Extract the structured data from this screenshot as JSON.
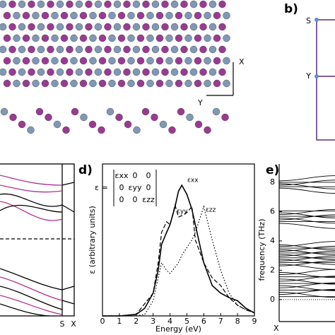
{
  "structure": {
    "axis_labels": [
      "X",
      "Y"
    ]
  },
  "panel_b": {
    "label": "b)",
    "points": [
      "S",
      "Y"
    ]
  },
  "panel_c": {
    "x_labels": [
      "S",
      "X"
    ]
  },
  "chart_data": [
    {
      "type": "line",
      "label": "d)",
      "xlabel": "Energy (eV)",
      "ylabel": "ε (arbitrary units)",
      "equation": {
        "lhs": "ε =",
        "rows": [
          [
            "εxx",
            "0",
            "0"
          ],
          [
            "0",
            "εyy",
            "0"
          ],
          [
            "0",
            "0",
            "εzz"
          ]
        ]
      },
      "annotations": [
        "εxx",
        "εyy",
        "εzz"
      ],
      "x": [
        0,
        1,
        2,
        2.5,
        3,
        3.3,
        3.5,
        3.8,
        4,
        4.3,
        4.5,
        4.7,
        5,
        5.3,
        5.5,
        6,
        6.5,
        7,
        7.5,
        8,
        8.5,
        9
      ],
      "series": [
        {
          "name": "εxx",
          "color": "#000000",
          "dash": "solid",
          "values": [
            0,
            0,
            0.01,
            0.05,
            0.15,
            0.3,
            0.47,
            0.55,
            0.6,
            0.72,
            0.82,
            0.86,
            0.8,
            0.7,
            0.6,
            0.35,
            0.2,
            0.15,
            0.12,
            0.1,
            0.05,
            0.02
          ]
        },
        {
          "name": "εyy",
          "color": "#000000",
          "dash": "dashed",
          "values": [
            0,
            0,
            0.01,
            0.08,
            0.15,
            0.35,
            0.55,
            0.62,
            0.6,
            0.73,
            0.65,
            0.66,
            0.68,
            0.72,
            0.5,
            0.35,
            0.25,
            0.2,
            0.12,
            0.07,
            0.04,
            0.02
          ]
        },
        {
          "name": "εzz",
          "color": "#000000",
          "dash": "dotted",
          "values": [
            0,
            0,
            0,
            0.01,
            0.1,
            0.25,
            0.35,
            0.3,
            0.28,
            0.32,
            0.35,
            0.4,
            0.45,
            0.5,
            0.55,
            0.72,
            0.5,
            0.3,
            0.15,
            0.07,
            0.04,
            0.02
          ]
        }
      ],
      "xlim": [
        0,
        9
      ],
      "xticks": [
        0,
        1,
        2,
        3,
        4,
        5,
        6,
        7,
        8,
        9
      ],
      "ylim": [
        0,
        1
      ]
    },
    {
      "type": "bands",
      "label": "e)",
      "ylabel": "frequency (THz)",
      "xlabel": "X",
      "ylim": [
        -1.5,
        9.25
      ],
      "yticks": [
        0,
        2,
        4,
        6,
        8
      ]
    }
  ]
}
